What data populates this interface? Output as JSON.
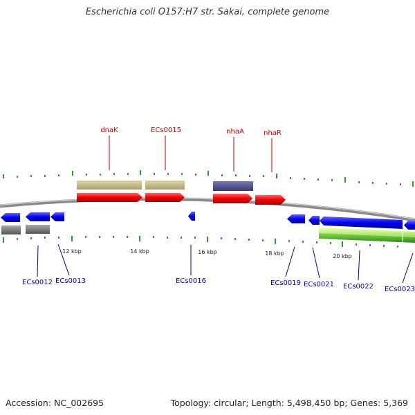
{
  "title": "Escherichia coli O157:H7 str. Sakai, complete genome",
  "accession": "Accession: NC_002695",
  "summary": "Topology: circular; Length: 5,498,450 bp; Genes: 5,369",
  "ticks": [
    "12 kbp",
    "14 kbp",
    "16 kbp",
    "18 kbp",
    "20 kbp"
  ],
  "genes_top": [
    "dnaK",
    "ECs0015",
    "nhaA",
    "nhaR"
  ],
  "genes_bottom": [
    "ECs0012",
    "ECs0013",
    "ECs0016",
    "ECs0019",
    "ECs0021",
    "ECs0022",
    "ECs0023"
  ],
  "colors": {
    "forward": "#ee0000",
    "reverse": "#0000ee",
    "label_forward": "#cc0000",
    "label_reverse": "#0000aa",
    "tick_green": "#339933",
    "cds_tan": "#c8c08a",
    "cds_purple": "#4e4c8c",
    "gray_block": "#777777",
    "green_block": "#44aa22",
    "light_green": "#aaee66",
    "backbone": "#8a8a8a"
  }
}
